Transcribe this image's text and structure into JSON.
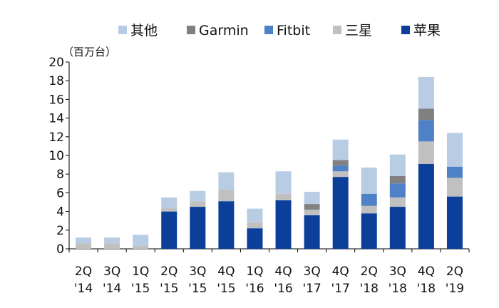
{
  "chart_data": {
    "type": "bar",
    "stacked": true,
    "unit_label": "（百万台）",
    "categories": [
      [
        "2Q",
        "'14"
      ],
      [
        "3Q",
        "'14"
      ],
      [
        "1Q",
        "'15"
      ],
      [
        "2Q",
        "'15"
      ],
      [
        "3Q",
        "'15"
      ],
      [
        "4Q",
        "'15"
      ],
      [
        "1Q",
        "'16"
      ],
      [
        "4Q",
        "'16"
      ],
      [
        "3Q",
        "'17"
      ],
      [
        "4Q",
        "'17"
      ],
      [
        "2Q",
        "'18"
      ],
      [
        "3Q",
        "'18"
      ],
      [
        "4Q",
        "'18"
      ],
      [
        "2Q",
        "'19"
      ]
    ],
    "series": [
      {
        "name": "苹果",
        "color": "#0b3f9a",
        "values": [
          0,
          0,
          0,
          4.0,
          4.5,
          5.1,
          2.2,
          5.2,
          3.6,
          7.7,
          3.8,
          4.5,
          9.1,
          5.6
        ]
      },
      {
        "name": "三星",
        "color": "#c0c0c0",
        "values": [
          0.6,
          0.6,
          0.3,
          0.4,
          0.6,
          1.2,
          0.6,
          0.7,
          0.6,
          0.6,
          0.8,
          1.0,
          2.4,
          2.0
        ]
      },
      {
        "name": "Fitbit",
        "color": "#4f81c7",
        "values": [
          0,
          0,
          0,
          0,
          0,
          0,
          0,
          0,
          0,
          0.6,
          1.3,
          1.5,
          2.3,
          1.2
        ]
      },
      {
        "name": "Garmin",
        "color": "#808080",
        "values": [
          0,
          0,
          0,
          0,
          0,
          0,
          0,
          0,
          0.6,
          0.6,
          0,
          0.8,
          1.2,
          0
        ]
      },
      {
        "name": "其他",
        "color": "#b8cce4",
        "values": [
          0.6,
          0.6,
          1.2,
          1.1,
          1.1,
          1.9,
          1.5,
          2.4,
          1.3,
          2.2,
          2.8,
          2.3,
          3.4,
          3.6
        ]
      }
    ],
    "legend_order": [
      "其他",
      "Garmin",
      "Fitbit",
      "三星",
      "苹果"
    ],
    "legend_position": "top",
    "ylim": [
      0,
      20
    ],
    "yticks": [
      0,
      2,
      4,
      6,
      8,
      10,
      12,
      14,
      16,
      18,
      20
    ],
    "grid": false
  }
}
